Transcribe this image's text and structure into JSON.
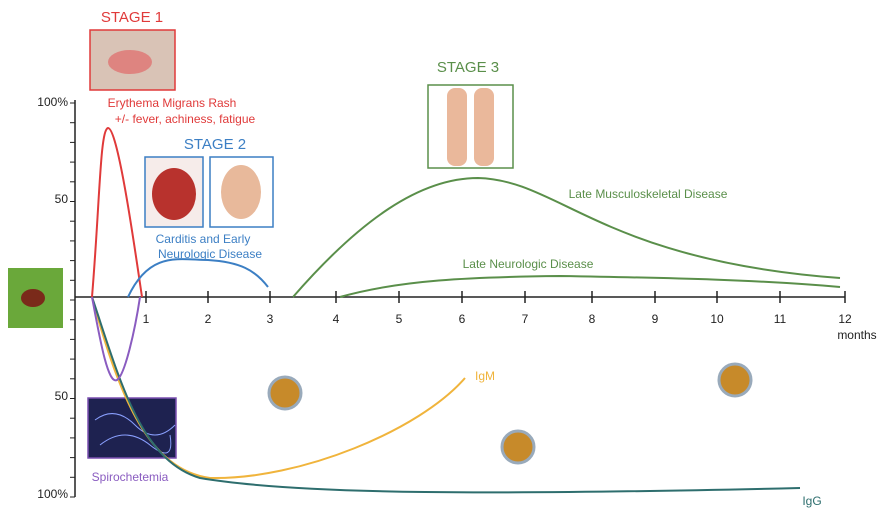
{
  "stages": {
    "stage1": "STAGE 1",
    "stage2": "STAGE 2",
    "stage3": "STAGE 3"
  },
  "labels": {
    "rash": "Erythema Migrans Rash",
    "rash_symptoms": "+/- fever, achiness, fatigue",
    "carditis_1": "Carditis and Early",
    "carditis_2": "Neurologic Disease",
    "late_msk": "Late Musculoskeletal Disease",
    "late_neuro": "Late Neurologic Disease",
    "igm": "IgM",
    "igg": "IgG",
    "spirochetemia": "Spirochetemia"
  },
  "axis": {
    "y_labels": [
      "100%",
      "50",
      "50",
      "100%"
    ],
    "x_labels": [
      "1",
      "2",
      "3",
      "4",
      "5",
      "6",
      "7",
      "8",
      "9",
      "10",
      "11",
      "12"
    ],
    "x_unit": "months"
  }
}
